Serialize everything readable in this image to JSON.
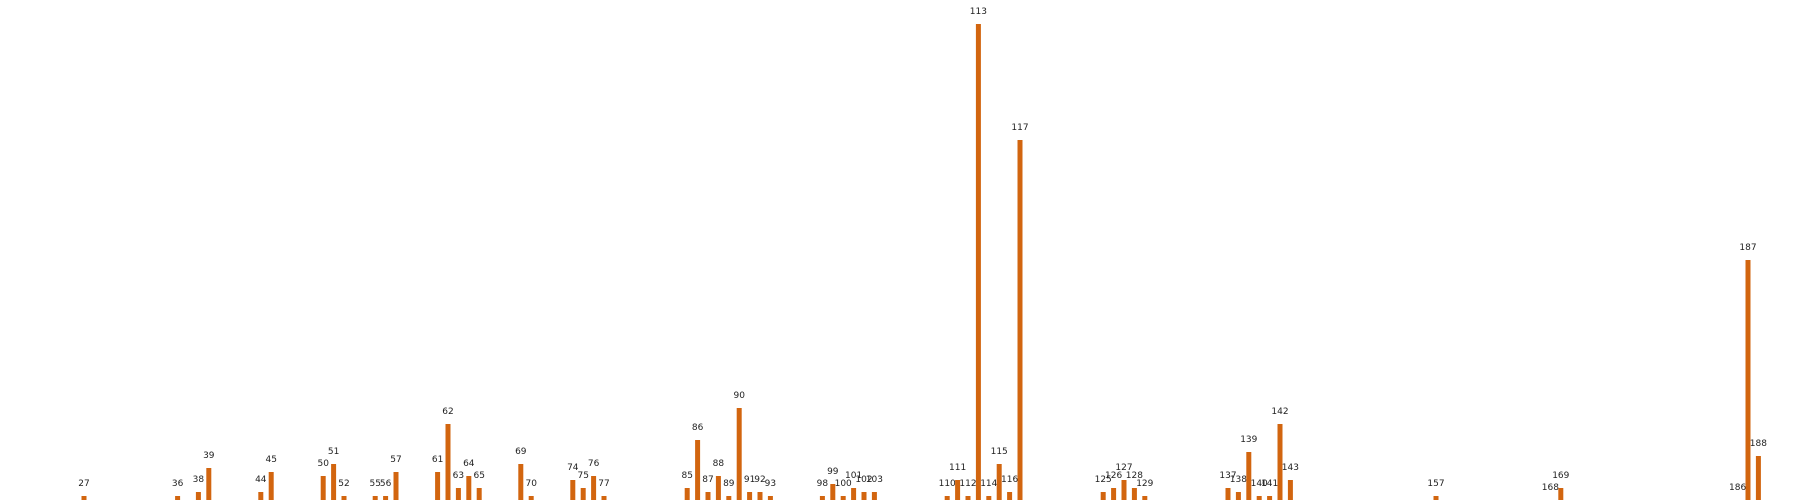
{
  "chart_data": {
    "type": "bar",
    "xlabel": "",
    "ylabel": "",
    "color": "#d2650f",
    "axes_visible": false,
    "grid": false,
    "x": [
      27,
      36,
      38,
      39,
      44,
      45,
      50,
      51,
      52,
      55,
      56,
      57,
      61,
      62,
      63,
      64,
      65,
      69,
      70,
      74,
      75,
      76,
      77,
      85,
      86,
      87,
      88,
      89,
      90,
      91,
      92,
      93,
      98,
      99,
      100,
      101,
      102,
      103,
      110,
      111,
      112,
      113,
      114,
      115,
      116,
      117,
      125,
      126,
      127,
      128,
      129,
      137,
      138,
      139,
      140,
      141,
      142,
      143,
      157,
      168,
      169,
      186,
      187,
      188
    ],
    "values": [
      1,
      1,
      2,
      8,
      2,
      7,
      6,
      9,
      1,
      1,
      1,
      7,
      7,
      19,
      3,
      6,
      3,
      9,
      1,
      5,
      3,
      6,
      1,
      3,
      15,
      2,
      6,
      1,
      23,
      2,
      2,
      1,
      1,
      4,
      1,
      3,
      2,
      2,
      1,
      5,
      1,
      119,
      1,
      9,
      2,
      90,
      2,
      3,
      5,
      3,
      1,
      3,
      2,
      12,
      1,
      1,
      19,
      5,
      1,
      0,
      3,
      0,
      60,
      11
    ]
  },
  "labels": [
    "27",
    "36",
    "38",
    "39",
    "44",
    "45",
    "50",
    "51",
    "52",
    "55",
    "56",
    "57",
    "61",
    "62",
    "63",
    "64",
    "65",
    "69",
    "70",
    "74",
    "75",
    "76",
    "77",
    "85",
    "86",
    "87",
    "88",
    "89",
    "90",
    "91",
    "92",
    "93",
    "98",
    "99",
    "100",
    "101",
    "102",
    "103",
    "110",
    "111",
    "112",
    "113",
    "114",
    "115",
    "116",
    "117",
    "125",
    "126",
    "127",
    "128",
    "129",
    "137",
    "138",
    "139",
    "140",
    "141",
    "142",
    "143",
    "157",
    "168",
    "169",
    "186",
    "187",
    "188"
  ]
}
